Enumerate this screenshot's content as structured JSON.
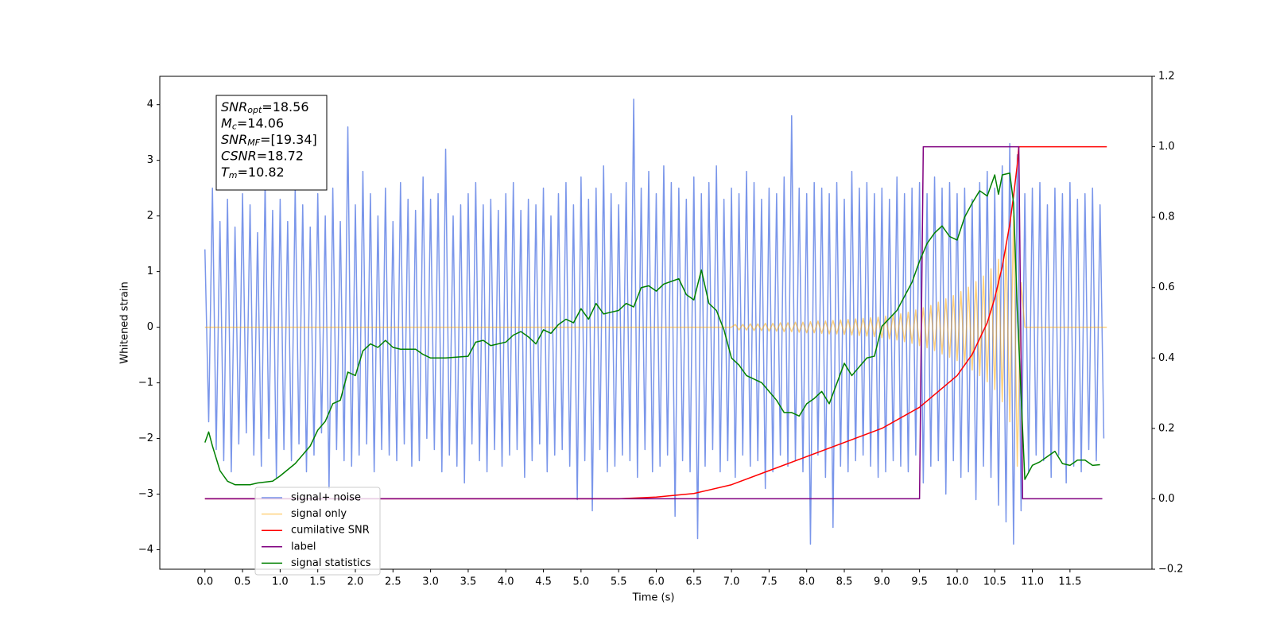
{
  "chart_data": {
    "type": "line",
    "xlabel": "Time (s)",
    "ylabel": "Whitened strain",
    "xlim": [
      -0.6,
      12.59
    ],
    "ylim": [
      -4.35,
      4.51
    ],
    "y2lim": [
      -0.2,
      1.2
    ],
    "xticks": [
      {
        "value": 0,
        "label": "0.0"
      },
      0.5,
      {
        "value": 1,
        "label": "1.0"
      },
      1.5,
      {
        "value": 2,
        "label": "2.0"
      },
      2.5,
      {
        "value": 3,
        "label": "3.0"
      },
      3.5,
      {
        "value": 4,
        "label": "4.0"
      },
      4.5,
      {
        "value": 5,
        "label": "5.0"
      },
      5.5,
      {
        "value": 6,
        "label": "6.0"
      },
      6.5,
      {
        "value": 7,
        "label": "7.0"
      },
      7.5,
      {
        "value": 8,
        "label": "8.0"
      },
      8.5,
      {
        "value": 9,
        "label": "9.0"
      },
      9.5,
      {
        "value": 10,
        "label": "10.0"
      },
      10.5,
      {
        "value": 11,
        "label": "11.0"
      },
      11.5
    ],
    "yticks": [
      {
        "value": -4,
        "label": "−4"
      },
      {
        "value": -3,
        "label": "−3"
      },
      {
        "value": -2,
        "label": "−2"
      },
      {
        "value": -1,
        "label": "−1"
      },
      0,
      1,
      2,
      3,
      4
    ],
    "y2ticks": [
      {
        "value": -0.2,
        "label": "−0.2"
      },
      {
        "value": 0,
        "label": "0.0"
      },
      0.2,
      0.4,
      0.6,
      0.8,
      {
        "value": 1,
        "label": "1.0"
      },
      1.2
    ],
    "annotations": [
      {
        "symbol": "SNR",
        "subscript": "opt",
        "text": "=18.56"
      },
      {
        "symbol": "M",
        "subscript": "c",
        "text": "=14.06"
      },
      {
        "symbol": "SNR",
        "subscript": "MF",
        "text": "=[19.34]"
      },
      {
        "symbol": "CSNR",
        "text": "=18.72"
      },
      {
        "symbol": "T",
        "subscript": "m",
        "text": "=10.82"
      }
    ],
    "series": [
      {
        "name": "signal+ noise",
        "color": "#4169e1",
        "opacity": 0.7,
        "width": 1.5,
        "x": [
          0,
          0.05,
          0.1,
          0.15,
          0.2,
          0.25,
          0.3,
          0.35,
          0.4,
          0.45,
          0.5,
          0.55,
          0.6,
          0.65,
          0.7,
          0.75,
          0.8,
          0.85,
          0.9,
          0.95,
          1,
          1.05,
          1.1,
          1.15,
          1.2,
          1.25,
          1.3,
          1.35,
          1.4,
          1.45,
          1.5,
          1.55,
          1.6,
          1.65,
          1.7,
          1.75,
          1.8,
          1.85,
          1.9,
          1.95,
          2,
          2.05,
          2.1,
          2.15,
          2.2,
          2.25,
          2.3,
          2.35,
          2.4,
          2.45,
          2.5,
          2.55,
          2.6,
          2.65,
          2.7,
          2.75,
          2.8,
          2.85,
          2.9,
          2.95,
          3,
          3.05,
          3.1,
          3.15,
          3.2,
          3.25,
          3.3,
          3.35,
          3.4,
          3.45,
          3.5,
          3.55,
          3.6,
          3.65,
          3.7,
          3.75,
          3.8,
          3.85,
          3.9,
          3.95,
          4,
          4.05,
          4.1,
          4.15,
          4.2,
          4.25,
          4.3,
          4.35,
          4.4,
          4.45,
          4.5,
          4.55,
          4.6,
          4.65,
          4.7,
          4.75,
          4.8,
          4.85,
          4.9,
          4.95,
          5,
          5.05,
          5.1,
          5.15,
          5.2,
          5.25,
          5.3,
          5.35,
          5.4,
          5.45,
          5.5,
          5.55,
          5.6,
          5.65,
          5.7,
          5.75,
          5.8,
          5.85,
          5.9,
          5.95,
          6,
          6.05,
          6.1,
          6.15,
          6.2,
          6.25,
          6.3,
          6.35,
          6.4,
          6.45,
          6.5,
          6.55,
          6.6,
          6.65,
          6.7,
          6.75,
          6.8,
          6.85,
          6.9,
          6.95,
          7,
          7.05,
          7.1,
          7.15,
          7.2,
          7.25,
          7.3,
          7.35,
          7.4,
          7.45,
          7.5,
          7.55,
          7.6,
          7.65,
          7.7,
          7.75,
          7.8,
          7.85,
          7.9,
          7.95,
          8,
          8.05,
          8.1,
          8.15,
          8.2,
          8.25,
          8.3,
          8.35,
          8.4,
          8.45,
          8.5,
          8.55,
          8.6,
          8.65,
          8.7,
          8.75,
          8.8,
          8.85,
          8.9,
          8.95,
          9,
          9.05,
          9.1,
          9.15,
          9.2,
          9.25,
          9.3,
          9.35,
          9.4,
          9.45,
          9.5,
          9.55,
          9.6,
          9.65,
          9.7,
          9.75,
          9.8,
          9.85,
          9.9,
          9.95,
          10,
          10.05,
          10.1,
          10.15,
          10.2,
          10.25,
          10.3,
          10.35,
          10.4,
          10.45,
          10.5,
          10.55,
          10.6,
          10.65,
          10.7,
          10.75,
          10.8,
          10.85,
          10.9,
          10.95,
          11,
          11.05,
          11.1,
          11.15,
          11.2,
          11.25,
          11.3,
          11.35,
          11.4,
          11.45,
          11.5,
          11.55,
          11.6,
          11.65,
          11.7,
          11.75,
          11.8,
          11.85,
          11.9,
          11.95
        ],
        "values": [
          1.4,
          -1.7,
          2.5,
          -2.2,
          1.9,
          -2.4,
          2.3,
          -2.6,
          1.8,
          -2.1,
          2.4,
          -1.9,
          2.2,
          -2.3,
          1.7,
          -2.5,
          2.6,
          -2.0,
          2.1,
          -2.7,
          2.3,
          -2.2,
          1.9,
          -2.4,
          2.5,
          -2.1,
          2.2,
          -2.6,
          1.8,
          -2.3,
          2.4,
          -1.9,
          2.0,
          -2.9,
          2.5,
          -2.2,
          1.9,
          -2.4,
          3.6,
          -2.5,
          2.2,
          -2.3,
          2.8,
          -2.1,
          2.4,
          -2.6,
          2.0,
          -2.2,
          2.5,
          -2.3,
          1.9,
          -2.4,
          2.6,
          -2.1,
          2.3,
          -2.5,
          2.1,
          -2.4,
          2.7,
          -2.0,
          2.3,
          -2.2,
          2.4,
          -2.6,
          3.2,
          -2.3,
          2.0,
          -2.5,
          2.2,
          -2.8,
          2.4,
          -2.1,
          2.6,
          -2.4,
          2.2,
          -2.6,
          2.3,
          -2.2,
          2.1,
          -2.5,
          2.4,
          -2.3,
          2.6,
          -2.2,
          2.1,
          -2.7,
          2.3,
          -2.4,
          2.2,
          -2.1,
          2.5,
          -2.6,
          2.0,
          -2.3,
          2.4,
          -2.2,
          2.6,
          -2.5,
          2.2,
          -3.1,
          2.7,
          -2.4,
          2.3,
          -3.3,
          2.5,
          -2.2,
          2.9,
          -2.6,
          2.4,
          -2.5,
          2.2,
          -2.3,
          2.6,
          -2.4,
          4.1,
          -2.7,
          2.5,
          -2.2,
          2.8,
          -2.6,
          2.4,
          -2.5,
          2.9,
          -2.3,
          2.6,
          -3.4,
          2.5,
          -2.4,
          2.3,
          -2.6,
          2.7,
          -3.8,
          2.4,
          -2.5,
          2.6,
          -2.2,
          2.9,
          -2.6,
          2.3,
          -2.4,
          2.5,
          -2.7,
          2.4,
          -2.3,
          2.8,
          -2.5,
          2.6,
          -2.4,
          2.3,
          -2.9,
          2.5,
          -2.6,
          2.4,
          -2.3,
          2.7,
          -2.5,
          3.8,
          -2.4,
          2.5,
          -2.6,
          2.4,
          -3.9,
          2.6,
          -2.3,
          2.5,
          -2.7,
          2.4,
          -3.6,
          2.6,
          -2.5,
          2.3,
          -2.6,
          2.8,
          -2.4,
          2.5,
          -2.3,
          2.6,
          -2.5,
          2.4,
          -2.7,
          2.5,
          -2.6,
          2.3,
          -2.4,
          2.7,
          -2.5,
          2.4,
          -2.6,
          2.5,
          -2.3,
          2.6,
          -2.8,
          2.4,
          -2.5,
          2.7,
          -2.4,
          2.5,
          -3.0,
          2.6,
          -2.4,
          2.4,
          -2.7,
          2.5,
          -2.6,
          2.3,
          -3.1,
          2.6,
          -2.5,
          2.8,
          -2.7,
          2.5,
          -3.2,
          2.9,
          -3.5,
          3.3,
          -3.9,
          3.1,
          -3.3,
          2.4,
          -2.6,
          2.5,
          -2.3,
          2.6,
          -2.4,
          2.2,
          -2.7,
          2.5,
          -2.3,
          2.4,
          -2.8,
          2.6,
          -2.5,
          2.3,
          -2.6,
          2.4,
          -2.2,
          2.5,
          -2.4,
          2.2,
          -2.0
        ]
      },
      {
        "name": "signal only",
        "color": "orange",
        "opacity": 0.5,
        "width": 1.5,
        "x": [
          0,
          7.0,
          7.05,
          7.1,
          7.15,
          7.2,
          7.25,
          7.3,
          7.35,
          7.4,
          7.45,
          7.5,
          7.55,
          7.6,
          7.65,
          7.7,
          7.75,
          7.8,
          7.85,
          7.9,
          7.95,
          8.0,
          8.05,
          8.1,
          8.15,
          8.2,
          8.25,
          8.3,
          8.35,
          8.4,
          8.45,
          8.5,
          8.55,
          8.6,
          8.65,
          8.7,
          8.75,
          8.8,
          8.85,
          8.9,
          8.95,
          9.0,
          9.05,
          9.1,
          9.15,
          9.2,
          9.25,
          9.3,
          9.35,
          9.4,
          9.45,
          9.5,
          9.55,
          9.6,
          9.65,
          9.7,
          9.75,
          9.8,
          9.85,
          9.9,
          9.95,
          10.0,
          10.05,
          10.1,
          10.15,
          10.2,
          10.25,
          10.3,
          10.35,
          10.4,
          10.45,
          10.5,
          10.55,
          10.6,
          10.65,
          10.7,
          10.75,
          10.8,
          10.85,
          10.9,
          11.99
        ],
        "values": [
          0,
          0,
          0.05,
          -0.05,
          0.05,
          -0.05,
          0.06,
          -0.06,
          0.06,
          -0.06,
          0.07,
          -0.07,
          0.07,
          -0.07,
          0.08,
          -0.08,
          0.08,
          -0.08,
          0.09,
          -0.09,
          0.09,
          -0.1,
          0.1,
          -0.1,
          0.11,
          -0.11,
          0.11,
          -0.12,
          0.12,
          -0.12,
          0.13,
          -0.13,
          0.14,
          -0.14,
          0.15,
          -0.15,
          0.16,
          -0.16,
          0.17,
          -0.17,
          0.18,
          -0.19,
          0.2,
          -0.21,
          0.22,
          -0.23,
          0.24,
          -0.26,
          0.27,
          -0.29,
          0.31,
          -0.33,
          0.35,
          -0.37,
          0.39,
          -0.42,
          0.45,
          -0.48,
          0.51,
          -0.54,
          0.57,
          -0.6,
          0.64,
          -0.68,
          0.72,
          -0.77,
          0.82,
          -0.87,
          0.92,
          -0.98,
          1.05,
          -1.12,
          1.22,
          -1.34,
          1.5,
          -1.7,
          2.0,
          -2.5,
          0.8,
          0,
          0
        ]
      },
      {
        "name": "cumilative SNR",
        "color": "red",
        "axis": "y2",
        "width": 1.5,
        "x": [
          0,
          5.5,
          6.0,
          6.5,
          7.0,
          7.5,
          8.0,
          8.5,
          9.0,
          9.5,
          10.0,
          10.2,
          10.4,
          10.5,
          10.6,
          10.7,
          10.75,
          10.8,
          10.82,
          11.99
        ],
        "values": [
          0,
          0,
          0.005,
          0.015,
          0.04,
          0.08,
          0.12,
          0.16,
          0.2,
          0.26,
          0.35,
          0.41,
          0.5,
          0.57,
          0.66,
          0.78,
          0.86,
          0.95,
          1.0,
          1.0
        ]
      },
      {
        "name": "label",
        "color": "purple",
        "axis": "y2",
        "width": 1.5,
        "x": [
          0,
          9.5,
          9.55,
          10.82,
          10.87,
          11.93
        ],
        "values": [
          0,
          0,
          1,
          1,
          0,
          0
        ]
      },
      {
        "name": "signal statistics",
        "color": "green",
        "axis": "y2",
        "width": 1.5,
        "x": [
          0,
          0.05,
          0.1,
          0.2,
          0.3,
          0.4,
          0.6,
          0.7,
          0.9,
          1.0,
          1.2,
          1.4,
          1.5,
          1.6,
          1.7,
          1.8,
          1.9,
          2.0,
          2.1,
          2.2,
          2.3,
          2.4,
          2.5,
          2.6,
          2.8,
          2.9,
          3.0,
          3.2,
          3.5,
          3.6,
          3.7,
          3.8,
          4.0,
          4.1,
          4.2,
          4.3,
          4.4,
          4.5,
          4.6,
          4.7,
          4.8,
          4.9,
          5.0,
          5.1,
          5.2,
          5.3,
          5.5,
          5.6,
          5.7,
          5.8,
          5.9,
          6.0,
          6.1,
          6.3,
          6.4,
          6.5,
          6.6,
          6.7,
          6.8,
          6.9,
          7.0,
          7.1,
          7.2,
          7.4,
          7.6,
          7.7,
          7.8,
          7.9,
          8.0,
          8.1,
          8.2,
          8.3,
          8.5,
          8.6,
          8.8,
          8.9,
          9.0,
          9.2,
          9.4,
          9.5,
          9.6,
          9.7,
          9.8,
          9.9,
          10.0,
          10.1,
          10.2,
          10.3,
          10.4,
          10.5,
          10.55,
          10.6,
          10.7,
          10.75,
          10.8,
          10.9,
          11.0,
          11.1,
          11.2,
          11.3,
          11.4,
          11.5,
          11.6,
          11.7,
          11.8,
          11.9
        ],
        "values": [
          0.16,
          0.19,
          0.15,
          0.08,
          0.05,
          0.04,
          0.04,
          0.045,
          0.05,
          0.065,
          0.1,
          0.15,
          0.195,
          0.22,
          0.27,
          0.28,
          0.36,
          0.35,
          0.42,
          0.44,
          0.43,
          0.45,
          0.43,
          0.425,
          0.425,
          0.41,
          0.4,
          0.4,
          0.405,
          0.445,
          0.45,
          0.435,
          0.445,
          0.465,
          0.475,
          0.46,
          0.44,
          0.48,
          0.47,
          0.495,
          0.51,
          0.5,
          0.54,
          0.51,
          0.555,
          0.525,
          0.535,
          0.555,
          0.545,
          0.6,
          0.605,
          0.59,
          0.61,
          0.625,
          0.58,
          0.565,
          0.65,
          0.555,
          0.535,
          0.48,
          0.4,
          0.38,
          0.35,
          0.33,
          0.28,
          0.245,
          0.245,
          0.235,
          0.27,
          0.285,
          0.305,
          0.27,
          0.385,
          0.35,
          0.4,
          0.405,
          0.49,
          0.535,
          0.615,
          0.675,
          0.725,
          0.755,
          0.775,
          0.745,
          0.735,
          0.8,
          0.84,
          0.875,
          0.86,
          0.92,
          0.865,
          0.92,
          0.925,
          0.84,
          0.535,
          0.055,
          0.095,
          0.105,
          0.12,
          0.135,
          0.1,
          0.095,
          0.11,
          0.11,
          0.095,
          0.097
        ]
      }
    ]
  }
}
